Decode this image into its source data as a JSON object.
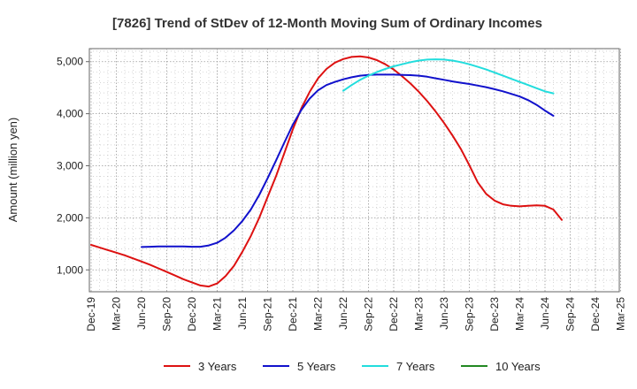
{
  "chart_data": {
    "type": "line",
    "title": "[7826]  Trend of StDev of 12-Month Moving Sum of Ordinary Incomes",
    "xlabel": "",
    "ylabel": "Amount (million yen)",
    "ylim": [
      580,
      5250
    ],
    "yticks": [
      1000,
      2000,
      3000,
      4000,
      5000
    ],
    "ytick_labels": [
      "1,000",
      "2,000",
      "3,000",
      "4,000",
      "5,000"
    ],
    "x_tick_labels": [
      "Dec-19",
      "Mar-20",
      "Jun-20",
      "Sep-20",
      "Dec-20",
      "Mar-21",
      "Jun-21",
      "Sep-21",
      "Dec-21",
      "Mar-22",
      "Jun-22",
      "Sep-22",
      "Dec-22",
      "Mar-23",
      "Jun-23",
      "Sep-23",
      "Dec-23",
      "Mar-24",
      "Jun-24",
      "Sep-24",
      "Dec-24",
      "Mar-25"
    ],
    "x_index_range": [
      0,
      63
    ],
    "grid": true,
    "legend_position": "bottom",
    "series": [
      {
        "name": "3 Years",
        "color": "#dd1111",
        "start_index": 0,
        "values": [
          1480,
          1430,
          1380,
          1330,
          1280,
          1220,
          1160,
          1100,
          1030,
          960,
          890,
          820,
          760,
          700,
          680,
          740,
          880,
          1080,
          1350,
          1650,
          2000,
          2400,
          2800,
          3250,
          3700,
          4100,
          4420,
          4680,
          4860,
          4980,
          5050,
          5090,
          5100,
          5080,
          5030,
          4950,
          4850,
          4720,
          4580,
          4420,
          4240,
          4040,
          3820,
          3580,
          3320,
          3010,
          2680,
          2460,
          2330,
          2260,
          2230,
          2220,
          2230,
          2240,
          2230,
          2160,
          1960
        ]
      },
      {
        "name": "5 Years",
        "color": "#1111cc",
        "start_index": 6,
        "values": [
          1440,
          1445,
          1450,
          1450,
          1450,
          1450,
          1445,
          1445,
          1470,
          1520,
          1620,
          1760,
          1940,
          2160,
          2440,
          2760,
          3100,
          3450,
          3790,
          4070,
          4290,
          4450,
          4550,
          4610,
          4660,
          4700,
          4730,
          4745,
          4750,
          4750,
          4750,
          4745,
          4740,
          4730,
          4710,
          4680,
          4650,
          4620,
          4595,
          4570,
          4540,
          4510,
          4470,
          4430,
          4380,
          4330,
          4260,
          4170,
          4060,
          3960
        ]
      },
      {
        "name": "7 Years",
        "color": "#22dddd",
        "start_index": 30,
        "values": [
          4440,
          4550,
          4650,
          4730,
          4800,
          4860,
          4910,
          4950,
          4990,
          5020,
          5040,
          5045,
          5040,
          5020,
          4990,
          4950,
          4900,
          4850,
          4790,
          4730,
          4670,
          4610,
          4550,
          4490,
          4430,
          4390
        ]
      },
      {
        "name": "10 Years",
        "color": "#228822",
        "start_index": 0,
        "values": []
      }
    ]
  }
}
